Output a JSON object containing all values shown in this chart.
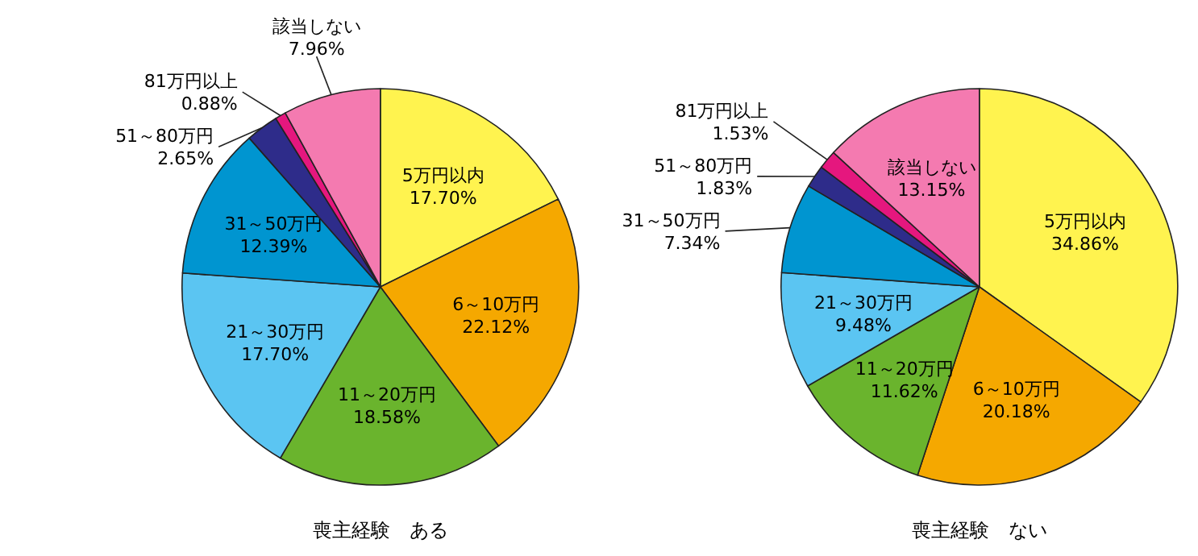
{
  "chart_data": [
    {
      "type": "pie",
      "title": "喪主経験　ある",
      "categories": [
        "5万円以内",
        "6～10万円",
        "11～20万円",
        "21～30万円",
        "31～50万円",
        "51～80万円",
        "81万円以上",
        "該当しない"
      ],
      "values": [
        17.7,
        22.12,
        18.58,
        17.7,
        12.39,
        2.65,
        0.88,
        7.96
      ],
      "value_labels": [
        "17.70%",
        "22.12%",
        "18.58%",
        "17.70%",
        "12.39%",
        "2.65%",
        "0.88%",
        "7.96%"
      ],
      "colors": [
        "#fff34f",
        "#f5a800",
        "#6ab42d",
        "#5bc5f2",
        "#0095d0",
        "#2e2c8a",
        "#e5177e",
        "#f47ab0"
      ]
    },
    {
      "type": "pie",
      "title": "喪主経験　ない",
      "categories": [
        "5万円以内",
        "6～10万円",
        "11～20万円",
        "21～30万円",
        "31～50万円",
        "51～80万円",
        "81万円以上",
        "該当しない"
      ],
      "values": [
        34.86,
        20.18,
        11.62,
        9.48,
        7.34,
        1.83,
        1.53,
        13.15
      ],
      "value_labels": [
        "34.86%",
        "20.18%",
        "11.62%",
        "9.48%",
        "7.34%",
        "1.83%",
        "1.53%",
        "13.15%"
      ],
      "colors": [
        "#fff34f",
        "#f5a800",
        "#6ab42d",
        "#5bc5f2",
        "#0095d0",
        "#2e2c8a",
        "#e5177e",
        "#f47ab0"
      ]
    }
  ]
}
